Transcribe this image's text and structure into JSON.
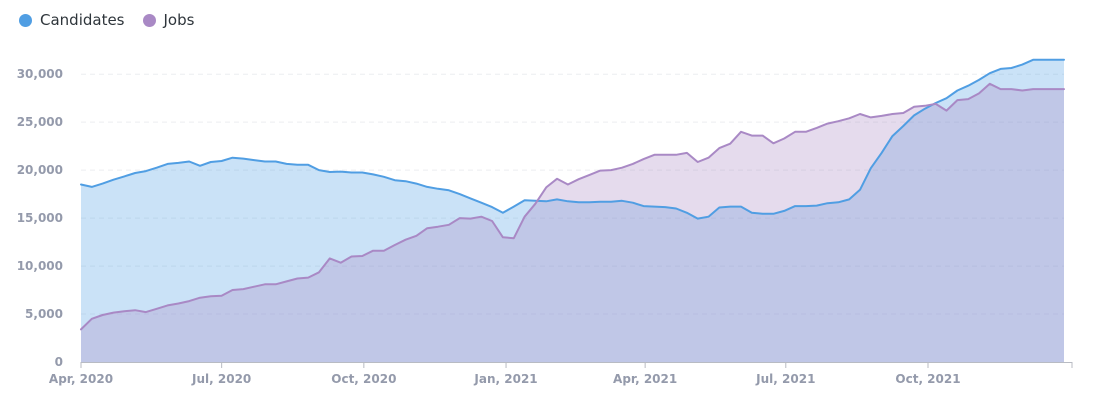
{
  "legend": {
    "items": [
      {
        "label": "Candidates",
        "color": "#509ee3"
      },
      {
        "label": "Jobs",
        "color": "#a989c5"
      }
    ]
  },
  "chart_data": {
    "type": "area",
    "title": "",
    "xlabel": "",
    "ylabel": "",
    "ylim": [
      0,
      32000
    ],
    "yticks": [
      0,
      5000,
      10000,
      15000,
      20000,
      25000,
      30000
    ],
    "ytick_labels": [
      "0",
      "5,000",
      "10,000",
      "15,000",
      "20,000",
      "25,000",
      "30,000"
    ],
    "xlim": [
      "2020-04-01",
      "2021-12-28"
    ],
    "xticks": [
      "2020-04-01",
      "2020-07-01",
      "2020-10-01",
      "2021-01-01",
      "2021-04-01",
      "2021-07-01",
      "2021-10-01"
    ],
    "xtick_labels": [
      "Apr, 2020",
      "Jul, 2020",
      "Oct, 2020",
      "Jan, 2021",
      "Apr, 2021",
      "Jul, 2021",
      "Oct, 2021"
    ],
    "grid": true,
    "legend_position": "top-left",
    "x": [
      "2020-04-01",
      "2020-04-08",
      "2020-04-15",
      "2020-04-22",
      "2020-04-29",
      "2020-05-06",
      "2020-05-13",
      "2020-05-20",
      "2020-05-27",
      "2020-06-03",
      "2020-06-10",
      "2020-06-17",
      "2020-06-24",
      "2020-07-01",
      "2020-07-08",
      "2020-07-15",
      "2020-07-22",
      "2020-07-29",
      "2020-08-05",
      "2020-08-12",
      "2020-08-19",
      "2020-08-26",
      "2020-09-02",
      "2020-09-09",
      "2020-09-16",
      "2020-09-23",
      "2020-09-30",
      "2020-10-07",
      "2020-10-14",
      "2020-10-21",
      "2020-10-28",
      "2020-11-04",
      "2020-11-11",
      "2020-11-18",
      "2020-11-25",
      "2020-12-02",
      "2020-12-09",
      "2020-12-16",
      "2020-12-23",
      "2020-12-30",
      "2021-01-06",
      "2021-01-13",
      "2021-01-20",
      "2021-01-27",
      "2021-02-03",
      "2021-02-10",
      "2021-02-17",
      "2021-02-24",
      "2021-03-03",
      "2021-03-10",
      "2021-03-17",
      "2021-03-24",
      "2021-03-31",
      "2021-04-07",
      "2021-04-14",
      "2021-04-21",
      "2021-04-28",
      "2021-05-05",
      "2021-05-12",
      "2021-05-19",
      "2021-05-26",
      "2021-06-02",
      "2021-06-09",
      "2021-06-16",
      "2021-06-23",
      "2021-06-30",
      "2021-07-07",
      "2021-07-14",
      "2021-07-21",
      "2021-07-28",
      "2021-08-04",
      "2021-08-11",
      "2021-08-18",
      "2021-08-25",
      "2021-09-01",
      "2021-09-08",
      "2021-09-15",
      "2021-09-22",
      "2021-09-29",
      "2021-10-06",
      "2021-10-13",
      "2021-10-20",
      "2021-10-27",
      "2021-11-03",
      "2021-11-10",
      "2021-11-17",
      "2021-11-24",
      "2021-12-01",
      "2021-12-08",
      "2021-12-15",
      "2021-12-22",
      "2021-12-28"
    ],
    "series": [
      {
        "name": "Candidates",
        "color": "#509ee3",
        "values": [
          18500,
          18250,
          18600,
          19000,
          19350,
          19700,
          19900,
          20250,
          20650,
          20750,
          20900,
          20450,
          20850,
          20950,
          21300,
          21200,
          21050,
          20900,
          20900,
          20650,
          20550,
          20550,
          20000,
          19800,
          19850,
          19750,
          19750,
          19550,
          19300,
          18950,
          18850,
          18600,
          18250,
          18050,
          17900,
          17500,
          17050,
          16600,
          16150,
          15550,
          16200,
          16850,
          16800,
          16750,
          16950,
          16750,
          16650,
          16650,
          16700,
          16700,
          16800,
          16600,
          16250,
          16200,
          16150,
          16000,
          15550,
          14950,
          15150,
          16100,
          16200,
          16200,
          15550,
          15450,
          15450,
          15750,
          16250,
          16250,
          16300,
          16550,
          16650,
          16950,
          17950,
          20200,
          21800,
          23550,
          24600,
          25700,
          26400,
          27000,
          27500,
          28300,
          28800,
          29400,
          30100,
          30550,
          30650,
          31000,
          31500,
          31500,
          31500,
          31500
        ]
      },
      {
        "name": "Jobs",
        "color": "#a989c5",
        "values": [
          3400,
          4500,
          4900,
          5150,
          5300,
          5400,
          5200,
          5550,
          5900,
          6100,
          6350,
          6700,
          6850,
          6900,
          7500,
          7600,
          7850,
          8100,
          8100,
          8400,
          8700,
          8800,
          9350,
          10800,
          10350,
          11000,
          11050,
          11600,
          11600,
          12200,
          12750,
          13150,
          13950,
          14100,
          14300,
          15000,
          14950,
          15150,
          14700,
          13000,
          12900,
          15150,
          16500,
          18200,
          19100,
          18500,
          19050,
          19500,
          19950,
          20000,
          20250,
          20650,
          21150,
          21600,
          21600,
          21600,
          21800,
          20850,
          21300,
          22300,
          22750,
          24000,
          23600,
          23600,
          22800,
          23300,
          24000,
          24000,
          24400,
          24850,
          25100,
          25400,
          25850,
          25500,
          25650,
          25850,
          25950,
          26600,
          26700,
          26900,
          26200,
          27300,
          27400,
          28000,
          29000,
          28450,
          28450,
          28300,
          28450,
          28450,
          28450,
          28450
        ]
      }
    ]
  }
}
